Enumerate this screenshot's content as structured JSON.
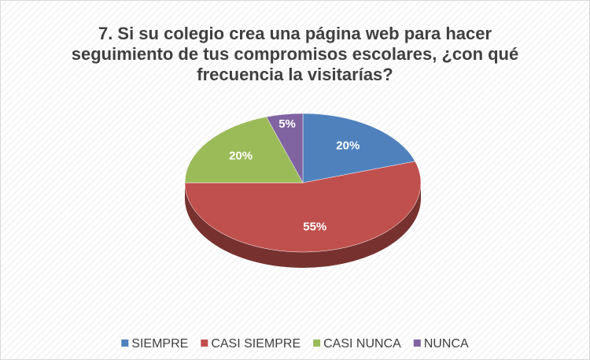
{
  "chart_data": {
    "type": "pie3d",
    "title": "7. Si su colegio crea una página web para hacer seguimiento de tus compromisos escolares, ¿con qué frecuencia la visitarías?",
    "categories": [
      "SIEMPRE",
      "CASI SIEMPRE",
      "CASI NUNCA",
      "NUNCA"
    ],
    "values": [
      20,
      55,
      20,
      5
    ],
    "value_labels": [
      "20%",
      "55%",
      "20%",
      "5%"
    ],
    "colors": [
      "#4f81bd",
      "#c0504d",
      "#9bbb59",
      "#8064a2"
    ],
    "legend": "bottom"
  }
}
